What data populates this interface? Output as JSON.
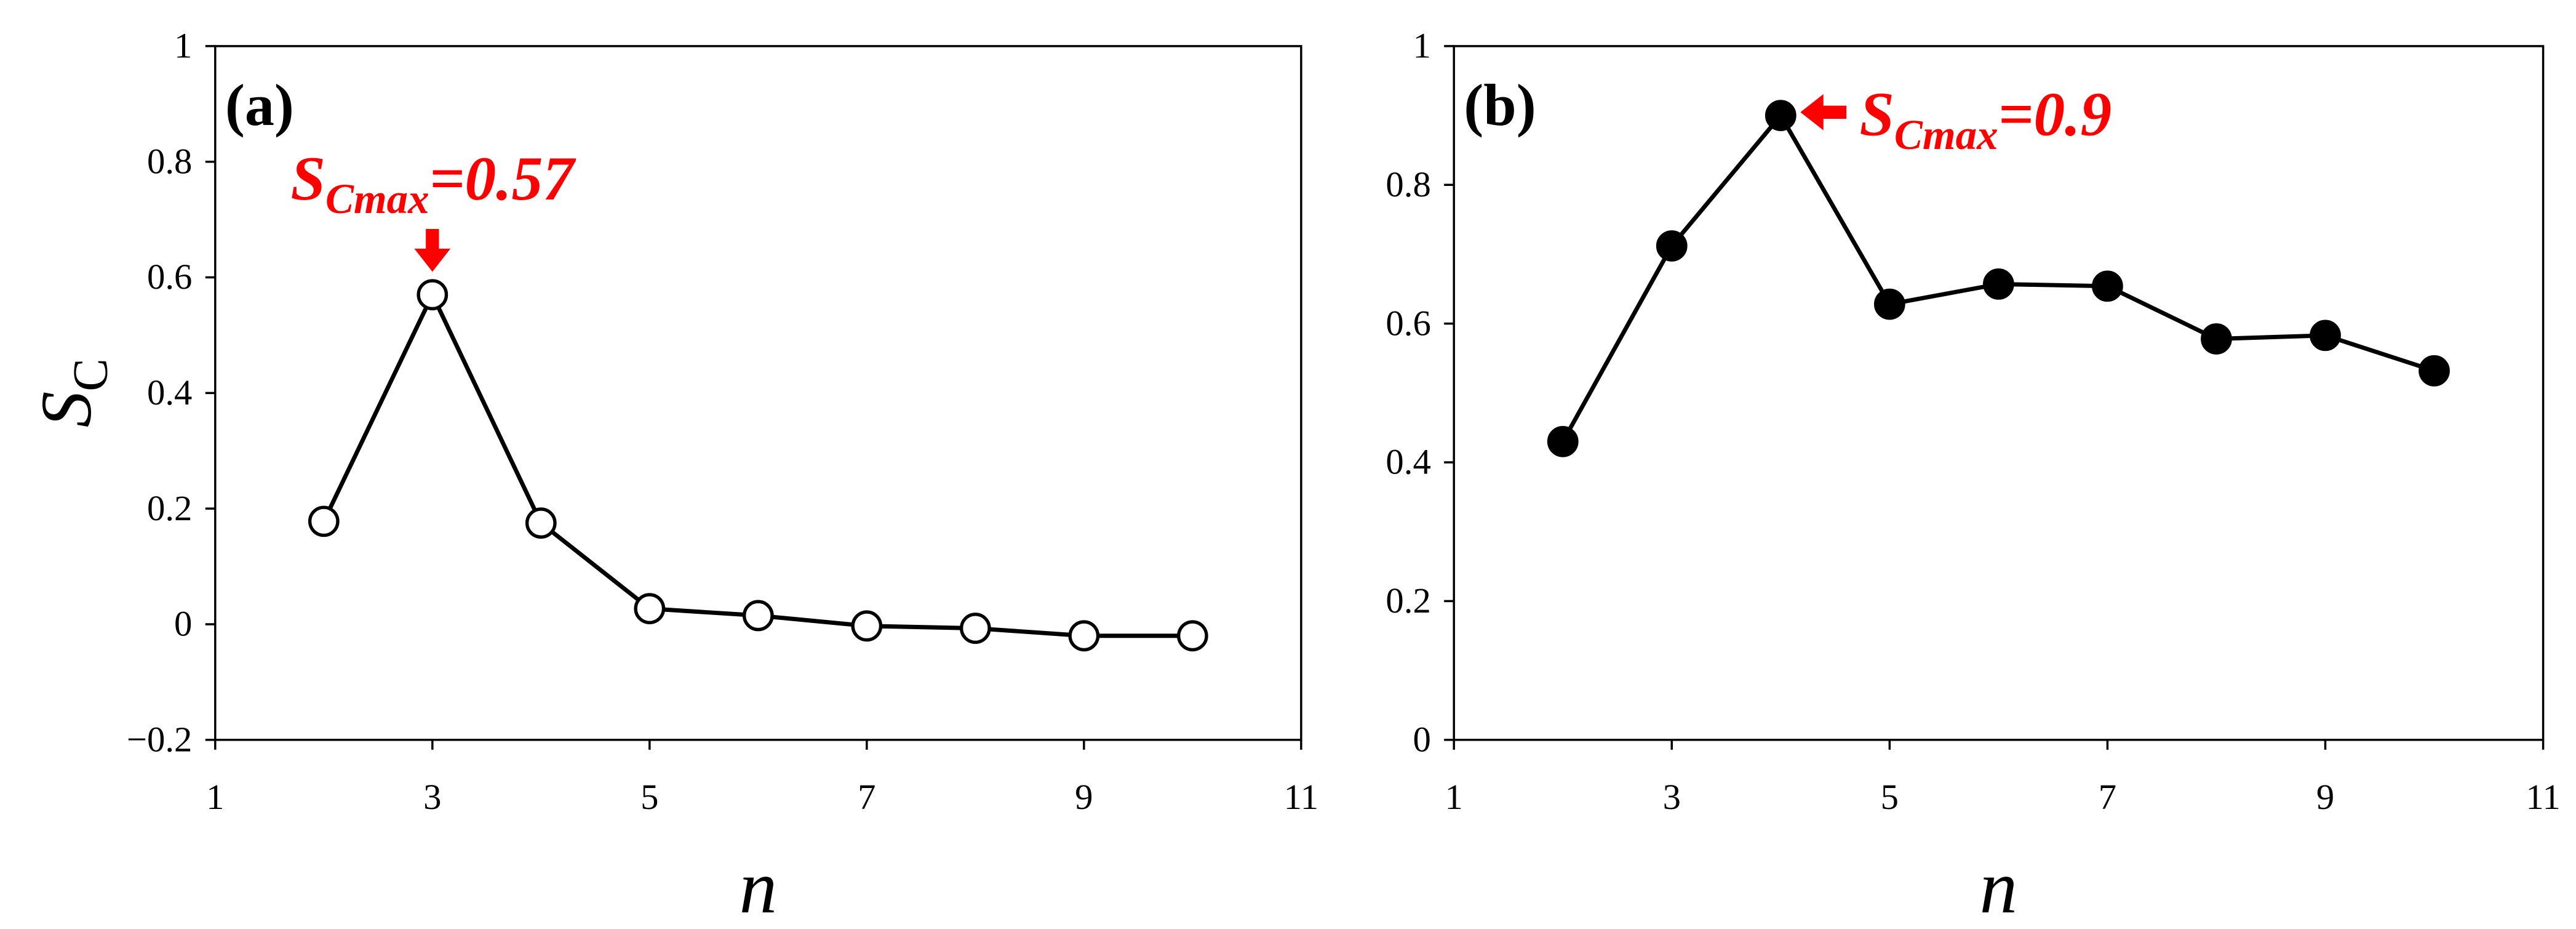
{
  "chart_data": [
    {
      "type": "line",
      "panel_label": "(a)",
      "x": [
        2,
        3,
        4,
        5,
        6,
        7,
        8,
        9,
        10
      ],
      "values": [
        0.178,
        0.57,
        0.175,
        0.027,
        0.015,
        -0.003,
        -0.007,
        -0.02,
        -0.02
      ],
      "color": "#000000",
      "marker_fill": "#ffffff",
      "xlim": [
        1,
        11
      ],
      "xticks": [
        1,
        3,
        5,
        7,
        9,
        11
      ],
      "ylim": [
        -0.2,
        1
      ],
      "yticks": [
        {
          "value": -0.2,
          "label": "−0.2"
        },
        0,
        0.2,
        0.4,
        0.6,
        0.8,
        1
      ],
      "x_label": "n",
      "y_label": {
        "symbol": "S",
        "subscript": "C"
      },
      "annotation": {
        "symbol": "S",
        "subscript": "Cmax",
        "text": "=0.57",
        "color": "#ff0000",
        "point": 1,
        "arrow": "down"
      }
    },
    {
      "type": "line",
      "panel_label": "(b)",
      "x": [
        2,
        3,
        4,
        5,
        6,
        7,
        8,
        9,
        10
      ],
      "values": [
        0.43,
        0.712,
        0.9,
        0.628,
        0.657,
        0.654,
        0.578,
        0.583,
        0.532
      ],
      "color": "#000000",
      "marker_fill": "#000000",
      "xlim": [
        1,
        11
      ],
      "xticks": [
        1,
        3,
        5,
        7,
        9,
        11
      ],
      "ylim": [
        0,
        1
      ],
      "yticks": [
        0,
        0.2,
        0.4,
        0.6,
        0.8,
        1
      ],
      "x_label": "n",
      "annotation": {
        "symbol": "S",
        "subscript": "Cmax",
        "text": "=0.9",
        "color": "#ff0000",
        "point": 2,
        "arrow": "left"
      }
    }
  ]
}
